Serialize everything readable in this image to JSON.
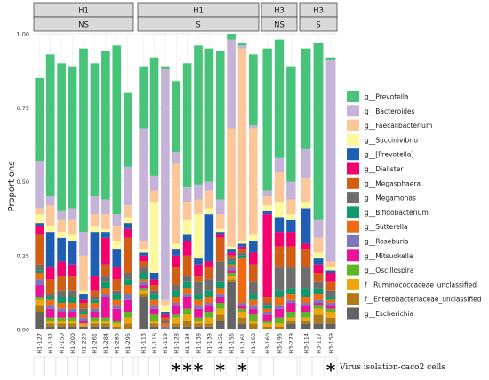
{
  "chart_data": {
    "type": "bar",
    "stacked": true,
    "ylabel": "Proportions",
    "ylim": [
      0,
      1
    ],
    "yticks": [
      "0.00",
      "0.25",
      "0.50",
      "0.75",
      "1.00"
    ],
    "grid": true,
    "legend_position": "right",
    "facets": [
      {
        "top": "H1",
        "bottom": "NS",
        "samples": [
          "H1-127",
          "H1-137",
          "H1-150",
          "H1-200",
          "H1-229",
          "H1-261",
          "H1-284",
          "H1-285",
          "H1-295"
        ]
      },
      {
        "top": "H1",
        "bottom": "S",
        "samples": [
          "H1-113",
          "H1-116",
          "H1-119",
          "H1-128",
          "H1-134",
          "H1-138",
          "H1-139",
          "H1-151",
          "H1-156",
          "H1-161",
          "H1-163"
        ]
      },
      {
        "top": "H3",
        "bottom": "NS",
        "samples": [
          "H3-160",
          "H3-195",
          "H3-279"
        ]
      },
      {
        "top": "H3",
        "bottom": "S",
        "samples": [
          "H3-114",
          "H3-117",
          "H3-159"
        ]
      }
    ],
    "taxa": [
      {
        "name": "g__Prevotella",
        "color": "#47c47a"
      },
      {
        "name": "g__Bacteroides",
        "color": "#c5b3d8"
      },
      {
        "name": "g__Faecalibacterium",
        "color": "#fcc89a"
      },
      {
        "name": "g__Succinivibrio",
        "color": "#fbf89d"
      },
      {
        "name": "g__[Prevotella]",
        "color": "#1f5fb3"
      },
      {
        "name": "g__Dialister",
        "color": "#f2006e"
      },
      {
        "name": "g__Megasphaera",
        "color": "#d25d15"
      },
      {
        "name": "g__Megamonas",
        "color": "#6e6e6e"
      },
      {
        "name": "g__Bifidobacterium",
        "color": "#0f9a6e"
      },
      {
        "name": "g__Sutterella",
        "color": "#ee6b12"
      },
      {
        "name": "g__Roseburia",
        "color": "#7a78bc"
      },
      {
        "name": "g__Mitsuokella",
        "color": "#e8139a"
      },
      {
        "name": "g__Oscillospira",
        "color": "#5db527"
      },
      {
        "name": "f__Ruminococcaceae_unclassified",
        "color": "#efa50d"
      },
      {
        "name": "f__Enterobacteriaceae_unclassified",
        "color": "#b27a16"
      },
      {
        "name": "g__Escherichia",
        "color": "#636363"
      }
    ],
    "stacks": {
      "H1-127": [
        0.28,
        0.16,
        0.02,
        0.03,
        0.01,
        0.03,
        0.1,
        0.02,
        0.01,
        0.02,
        0.02,
        0.04,
        0.01,
        0.02,
        0.02,
        0.06
      ],
      "H1-137": [
        0.48,
        0.03,
        0.07,
        0.02,
        0.12,
        0.04,
        0.05,
        0.01,
        0.01,
        0.02,
        0.01,
        0.03,
        0.01,
        0.01,
        0.01,
        0.01
      ],
      "H1-150": [
        0.5,
        0.03,
        0.04,
        0.02,
        0.08,
        0.05,
        0.05,
        0.02,
        0.02,
        0.02,
        0.01,
        0.02,
        0.01,
        0.01,
        0.01,
        0.01
      ],
      "H1-200": [
        0.48,
        0.04,
        0.05,
        0.02,
        0.08,
        0.04,
        0.05,
        0.02,
        0.02,
        0.02,
        0.01,
        0.02,
        0.01,
        0.01,
        0.01,
        0.01
      ],
      "H1-229": [
        0.62,
        0.08,
        0.12,
        0.01,
        0.02,
        0.01,
        0.02,
        0.01,
        0.01,
        0.01,
        0.01,
        0.01,
        0.0,
        0.01,
        0.0,
        0.01
      ],
      "H1-261": [
        0.45,
        0.06,
        0.04,
        0.02,
        0.15,
        0.05,
        0.02,
        0.01,
        0.01,
        0.02,
        0.01,
        0.02,
        0.01,
        0.01,
        0.01,
        0.01
      ],
      "H1-284": [
        0.5,
        0.05,
        0.05,
        0.01,
        0.02,
        0.09,
        0.04,
        0.02,
        0.02,
        0.02,
        0.01,
        0.07,
        0.01,
        0.01,
        0.01,
        0.01
      ],
      "H1-285": [
        0.57,
        0.04,
        0.05,
        0.03,
        0.06,
        0.04,
        0.04,
        0.01,
        0.02,
        0.02,
        0.01,
        0.04,
        0.01,
        0.01,
        0.01,
        0.0
      ],
      "H1-295": [
        0.25,
        0.13,
        0.04,
        0.02,
        0.02,
        0.03,
        0.12,
        0.02,
        0.02,
        0.03,
        0.02,
        0.04,
        0.02,
        0.02,
        0.02,
        0.0
      ],
      "H1-113": [
        0.21,
        0.38,
        0.03,
        0.01,
        0.01,
        0.02,
        0.02,
        0.02,
        0.02,
        0.01,
        0.01,
        0.01,
        0.01,
        0.01,
        0.01,
        0.11
      ],
      "H1-116": [
        0.4,
        0.05,
        0.04,
        0.24,
        0.02,
        0.02,
        0.02,
        0.01,
        0.02,
        0.02,
        0.01,
        0.02,
        0.02,
        0.01,
        0.01,
        0.01
      ],
      "H1-119": [
        0.01,
        0.78,
        0.02,
        0.02,
        0.01,
        0.01,
        0.01,
        0.01,
        0.0,
        0.01,
        0.01,
        0.0,
        0.0,
        0.0,
        0.0,
        0.0
      ],
      "H1-128": [
        0.24,
        0.04,
        0.27,
        0.02,
        0.02,
        0.04,
        0.06,
        0.02,
        0.02,
        0.02,
        0.01,
        0.03,
        0.01,
        0.02,
        0.01,
        0.01
      ],
      "H1-134": [
        0.42,
        0.05,
        0.06,
        0.05,
        0.02,
        0.05,
        0.07,
        0.02,
        0.02,
        0.02,
        0.01,
        0.04,
        0.02,
        0.02,
        0.02,
        0.01
      ],
      "H1-138": [
        0.47,
        0.05,
        0.05,
        0.15,
        0.02,
        0.04,
        0.02,
        0.04,
        0.02,
        0.02,
        0.01,
        0.03,
        0.01,
        0.01,
        0.01,
        0.01
      ],
      "H1-139": [
        0.45,
        0.03,
        0.06,
        0.02,
        0.16,
        0.02,
        0.04,
        0.04,
        0.02,
        0.02,
        0.01,
        0.02,
        0.02,
        0.02,
        0.01,
        0.01
      ],
      "H1-151": [
        0.5,
        0.05,
        0.05,
        0.01,
        0.01,
        0.01,
        0.08,
        0.07,
        0.02,
        0.02,
        0.01,
        0.02,
        0.02,
        0.02,
        0.02,
        0.03
      ],
      "H1-156": [
        0.02,
        0.3,
        0.4,
        0.01,
        0.01,
        0.01,
        0.01,
        0.01,
        0.01,
        0.01,
        0.01,
        0.01,
        0.01,
        0.01,
        0.01,
        0.16
      ],
      "H1-161": [
        0.01,
        0.01,
        0.65,
        0.01,
        0.01,
        0.01,
        0.01,
        0.01,
        0.01,
        0.15,
        0.01,
        0.01,
        0.01,
        0.02,
        0.02,
        0.02
      ],
      "H1-163": [
        0.24,
        0.01,
        0.36,
        0.02,
        0.04,
        0.04,
        0.06,
        0.04,
        0.02,
        0.02,
        0.01,
        0.02,
        0.02,
        0.01,
        0.02,
        0.0
      ],
      "H3-160": [
        0.48,
        0.02,
        0.03,
        0.02,
        0.01,
        0.28,
        0.02,
        0.01,
        0.01,
        0.01,
        0.01,
        0.02,
        0.01,
        0.01,
        0.01,
        0.0
      ],
      "H3-195": [
        0.4,
        0.05,
        0.1,
        0.05,
        0.05,
        0.05,
        0.07,
        0.08,
        0.02,
        0.03,
        0.01,
        0.03,
        0.02,
        0.01,
        0.01,
        0.0
      ],
      "H3-279": [
        0.39,
        0.06,
        0.05,
        0.02,
        0.04,
        0.05,
        0.07,
        0.07,
        0.02,
        0.02,
        0.01,
        0.03,
        0.02,
        0.01,
        0.01,
        0.02
      ],
      "H3-114": [
        0.34,
        0.1,
        0.08,
        0.02,
        0.12,
        0.02,
        0.06,
        0.07,
        0.03,
        0.02,
        0.01,
        0.02,
        0.02,
        0.01,
        0.01,
        0.02
      ],
      "H3-117": [
        0.6,
        0.06,
        0.05,
        0.02,
        0.02,
        0.03,
        0.03,
        0.02,
        0.02,
        0.02,
        0.01,
        0.01,
        0.01,
        0.02,
        0.03,
        0.02
      ],
      "H3-159": [
        0.01,
        0.68,
        0.02,
        0.01,
        0.01,
        0.03,
        0.03,
        0.02,
        0.01,
        0.01,
        0.01,
        0.01,
        0.01,
        0.02,
        0.02,
        0.02
      ]
    },
    "virus_isolation": {
      "label": "Virus isolation-caco2 cells",
      "marker": "*",
      "samples": [
        "H1-128",
        "H1-134",
        "H1-138",
        "H1-151",
        "H1-161",
        "H3-159"
      ]
    }
  }
}
